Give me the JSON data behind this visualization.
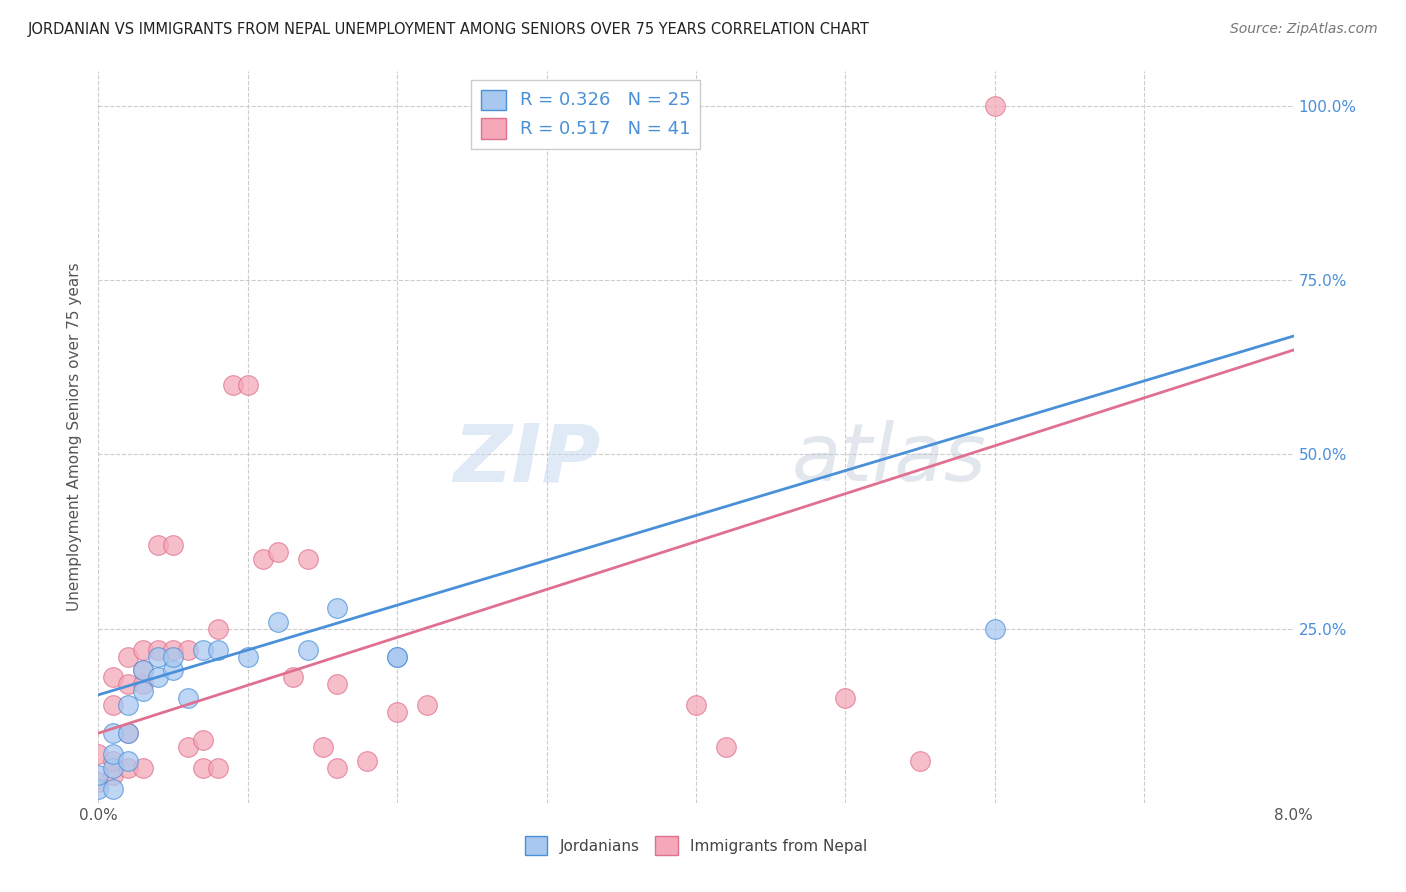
{
  "title": "JORDANIAN VS IMMIGRANTS FROM NEPAL UNEMPLOYMENT AMONG SENIORS OVER 75 YEARS CORRELATION CHART",
  "source": "Source: ZipAtlas.com",
  "ylabel": "Unemployment Among Seniors over 75 years",
  "xlabel_jordanians": "Jordanians",
  "xlabel_nepal": "Immigrants from Nepal",
  "xlim": [
    0.0,
    0.08
  ],
  "ylim": [
    0.0,
    1.05
  ],
  "r_jordanian": 0.326,
  "n_jordanian": 25,
  "r_nepal": 0.517,
  "n_nepal": 41,
  "color_jordanian": "#a8c8f0",
  "color_nepal": "#f4a8b8",
  "line_color_jordanian": "#4a90d9",
  "line_color_nepal": "#e07090",
  "watermark_zip": "ZIP",
  "watermark_atlas": "atlas",
  "background_color": "#ffffff",
  "grid_color": "#cccccc",
  "jordanian_x": [
    0.0,
    0.0,
    0.001,
    0.001,
    0.001,
    0.001,
    0.002,
    0.002,
    0.002,
    0.003,
    0.003,
    0.004,
    0.004,
    0.005,
    0.005,
    0.006,
    0.007,
    0.008,
    0.01,
    0.012,
    0.014,
    0.016,
    0.02,
    0.02,
    0.06
  ],
  "jordanian_y": [
    0.02,
    0.04,
    0.02,
    0.05,
    0.07,
    0.1,
    0.06,
    0.1,
    0.14,
    0.16,
    0.19,
    0.18,
    0.21,
    0.19,
    0.21,
    0.15,
    0.22,
    0.22,
    0.21,
    0.26,
    0.22,
    0.28,
    0.21,
    0.21,
    0.25
  ],
  "nepal_x": [
    0.0,
    0.0,
    0.001,
    0.001,
    0.001,
    0.001,
    0.002,
    0.002,
    0.002,
    0.002,
    0.003,
    0.003,
    0.003,
    0.003,
    0.004,
    0.004,
    0.005,
    0.005,
    0.006,
    0.006,
    0.007,
    0.007,
    0.008,
    0.008,
    0.009,
    0.01,
    0.011,
    0.012,
    0.013,
    0.014,
    0.015,
    0.016,
    0.016,
    0.018,
    0.02,
    0.022,
    0.04,
    0.042,
    0.05,
    0.055,
    0.06
  ],
  "nepal_y": [
    0.03,
    0.07,
    0.04,
    0.06,
    0.14,
    0.18,
    0.05,
    0.1,
    0.17,
    0.21,
    0.05,
    0.17,
    0.22,
    0.19,
    0.22,
    0.37,
    0.22,
    0.37,
    0.08,
    0.22,
    0.05,
    0.09,
    0.05,
    0.25,
    0.6,
    0.6,
    0.35,
    0.36,
    0.18,
    0.35,
    0.08,
    0.17,
    0.05,
    0.06,
    0.13,
    0.14,
    0.14,
    0.08,
    0.15,
    0.06,
    1.0
  ],
  "line_jordanian_x0": 0.0,
  "line_jordanian_y0": 0.155,
  "line_jordanian_x1": 0.08,
  "line_jordanian_y1": 0.67,
  "line_nepal_x0": 0.0,
  "line_nepal_y0": 0.1,
  "line_nepal_x1": 0.08,
  "line_nepal_y1": 0.65
}
